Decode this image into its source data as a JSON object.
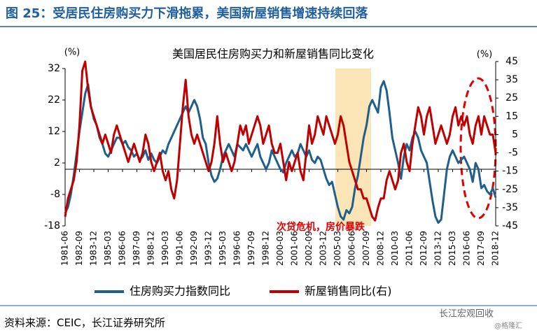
{
  "header": {
    "title": "图 25：受居民住房购买力下滑拖累，美国新屋销售增速持续回落"
  },
  "chart_data": {
    "type": "line",
    "title": "美国居民住房购买力和新屋销售同比变化",
    "y_unit": "(%)",
    "y2_unit": "(%)",
    "annotation": "次贷危机，房价暴跌",
    "categories": [
      "1981-06",
      null,
      null,
      null,
      null,
      "1982-09",
      null,
      null,
      null,
      null,
      "1983-12",
      null,
      null,
      null,
      null,
      "1985-03",
      null,
      null,
      null,
      null,
      "1986-06",
      null,
      null,
      null,
      null,
      "1987-09",
      null,
      null,
      null,
      null,
      "1988-12",
      null,
      null,
      null,
      null,
      "1990-03",
      null,
      null,
      null,
      null,
      "1991-06",
      null,
      null,
      null,
      null,
      "1992-09",
      null,
      null,
      null,
      null,
      "1993-12",
      null,
      null,
      null,
      null,
      "1995-03",
      null,
      null,
      null,
      null,
      "1996-06",
      null,
      null,
      null,
      null,
      "1997-09",
      null,
      null,
      null,
      null,
      "1998-12",
      null,
      null,
      null,
      null,
      "2000-03",
      null,
      null,
      null,
      null,
      "2001-06",
      null,
      null,
      null,
      null,
      "2002-09",
      null,
      null,
      null,
      null,
      "2003-12",
      null,
      null,
      null,
      null,
      "2005-03",
      null,
      null,
      null,
      null,
      "2006-06",
      null,
      null,
      null,
      null,
      "2007-09",
      null,
      null,
      null,
      null,
      "2008-12",
      null,
      null,
      null,
      null,
      "2010-03",
      null,
      null,
      null,
      null,
      "2011-06",
      null,
      null,
      null,
      null,
      "2012-09",
      null,
      null,
      null,
      null,
      "2013-12",
      null,
      null,
      null,
      null,
      "2015-03",
      null,
      null,
      null,
      null,
      "2016-06",
      null,
      null,
      null,
      null,
      "2017-09",
      null,
      null,
      null,
      null,
      "2018-12"
    ],
    "series": [
      {
        "name": "住房购买力指数同比",
        "color": "#1f5f8b",
        "values": [
          -14,
          -12,
          -8,
          -2,
          5,
          12,
          18,
          24,
          27,
          20,
          16,
          14,
          10,
          8,
          5,
          4,
          6,
          8,
          10,
          10,
          8,
          9,
          7,
          6,
          4,
          5,
          3,
          4,
          6,
          3,
          5,
          3,
          2,
          4,
          6,
          5,
          8,
          10,
          12,
          14,
          16,
          18,
          20,
          18,
          20,
          22,
          20,
          16,
          10,
          8,
          2,
          -2,
          -4,
          -3,
          0,
          4,
          6,
          8,
          6,
          4,
          8,
          7,
          6,
          8,
          6,
          4,
          6,
          8,
          4,
          2,
          0,
          2,
          6,
          4,
          2,
          0,
          -1,
          2,
          4,
          6,
          4,
          5,
          8,
          6,
          4,
          6,
          3,
          2,
          4,
          3,
          0,
          -3,
          -5,
          -4,
          -8,
          -12,
          -15,
          -16,
          -13,
          -14,
          -12,
          -6,
          -2,
          4,
          10,
          14,
          20,
          22,
          20,
          18,
          26,
          28,
          25,
          18,
          10,
          6,
          2,
          -3,
          4,
          8,
          6,
          10,
          12,
          10,
          6,
          4,
          2,
          -4,
          -10,
          -15,
          -17,
          -16,
          -8,
          0,
          4,
          6,
          4,
          2,
          3,
          4,
          2,
          0,
          -4,
          2,
          0,
          -6,
          -5,
          -7,
          -8,
          -6,
          -9
        ]
      },
      {
        "name": "新屋销售同比(右)",
        "color": "#c00000",
        "axis": "y2",
        "values": [
          -40,
          -30,
          -25,
          -20,
          -10,
          10,
          40,
          45,
          30,
          20,
          15,
          10,
          5,
          0,
          5,
          0,
          -5,
          5,
          10,
          5,
          0,
          -5,
          -10,
          -5,
          0,
          -5,
          -10,
          -5,
          5,
          0,
          -10,
          -15,
          -10,
          -5,
          -15,
          -20,
          -15,
          -25,
          -30,
          -20,
          0,
          20,
          35,
          15,
          5,
          0,
          5,
          0,
          -5,
          -10,
          -15,
          -10,
          0,
          15,
          0,
          -10,
          -5,
          -10,
          -15,
          -10,
          0,
          10,
          5,
          10,
          0,
          5,
          10,
          15,
          10,
          0,
          5,
          10,
          0,
          -5,
          -5,
          0,
          -10,
          -20,
          -10,
          -15,
          -10,
          -5,
          -15,
          -20,
          -5,
          10,
          0,
          5,
          15,
          10,
          5,
          15,
          10,
          5,
          0,
          5,
          15,
          10,
          0,
          -10,
          -15,
          -20,
          -25,
          -25,
          -30,
          -30,
          -35,
          -40,
          -42,
          -35,
          -30,
          -30,
          -20,
          -15,
          -20,
          -25,
          -20,
          -5,
          0,
          -10,
          -15,
          0,
          10,
          20,
          15,
          5,
          15,
          20,
          10,
          0,
          5,
          10,
          5,
          0,
          5,
          15,
          20,
          10,
          15,
          10,
          15,
          5,
          0,
          10,
          15,
          5,
          15,
          10,
          5,
          5,
          -5
        ]
      }
    ],
    "ylim": [
      -18,
      32
    ],
    "yticks": [
      -18,
      -8,
      2,
      12,
      22,
      32
    ],
    "y2lim": [
      -45,
      45
    ],
    "y2ticks": [
      -45,
      -35,
      -25,
      -15,
      -5,
      5,
      15,
      25,
      35,
      45
    ]
  },
  "footer": {
    "source": "资料来源：CEIC，长江证券研究所",
    "watermark": "长江宏观回收",
    "credit": "@格隆汇"
  }
}
